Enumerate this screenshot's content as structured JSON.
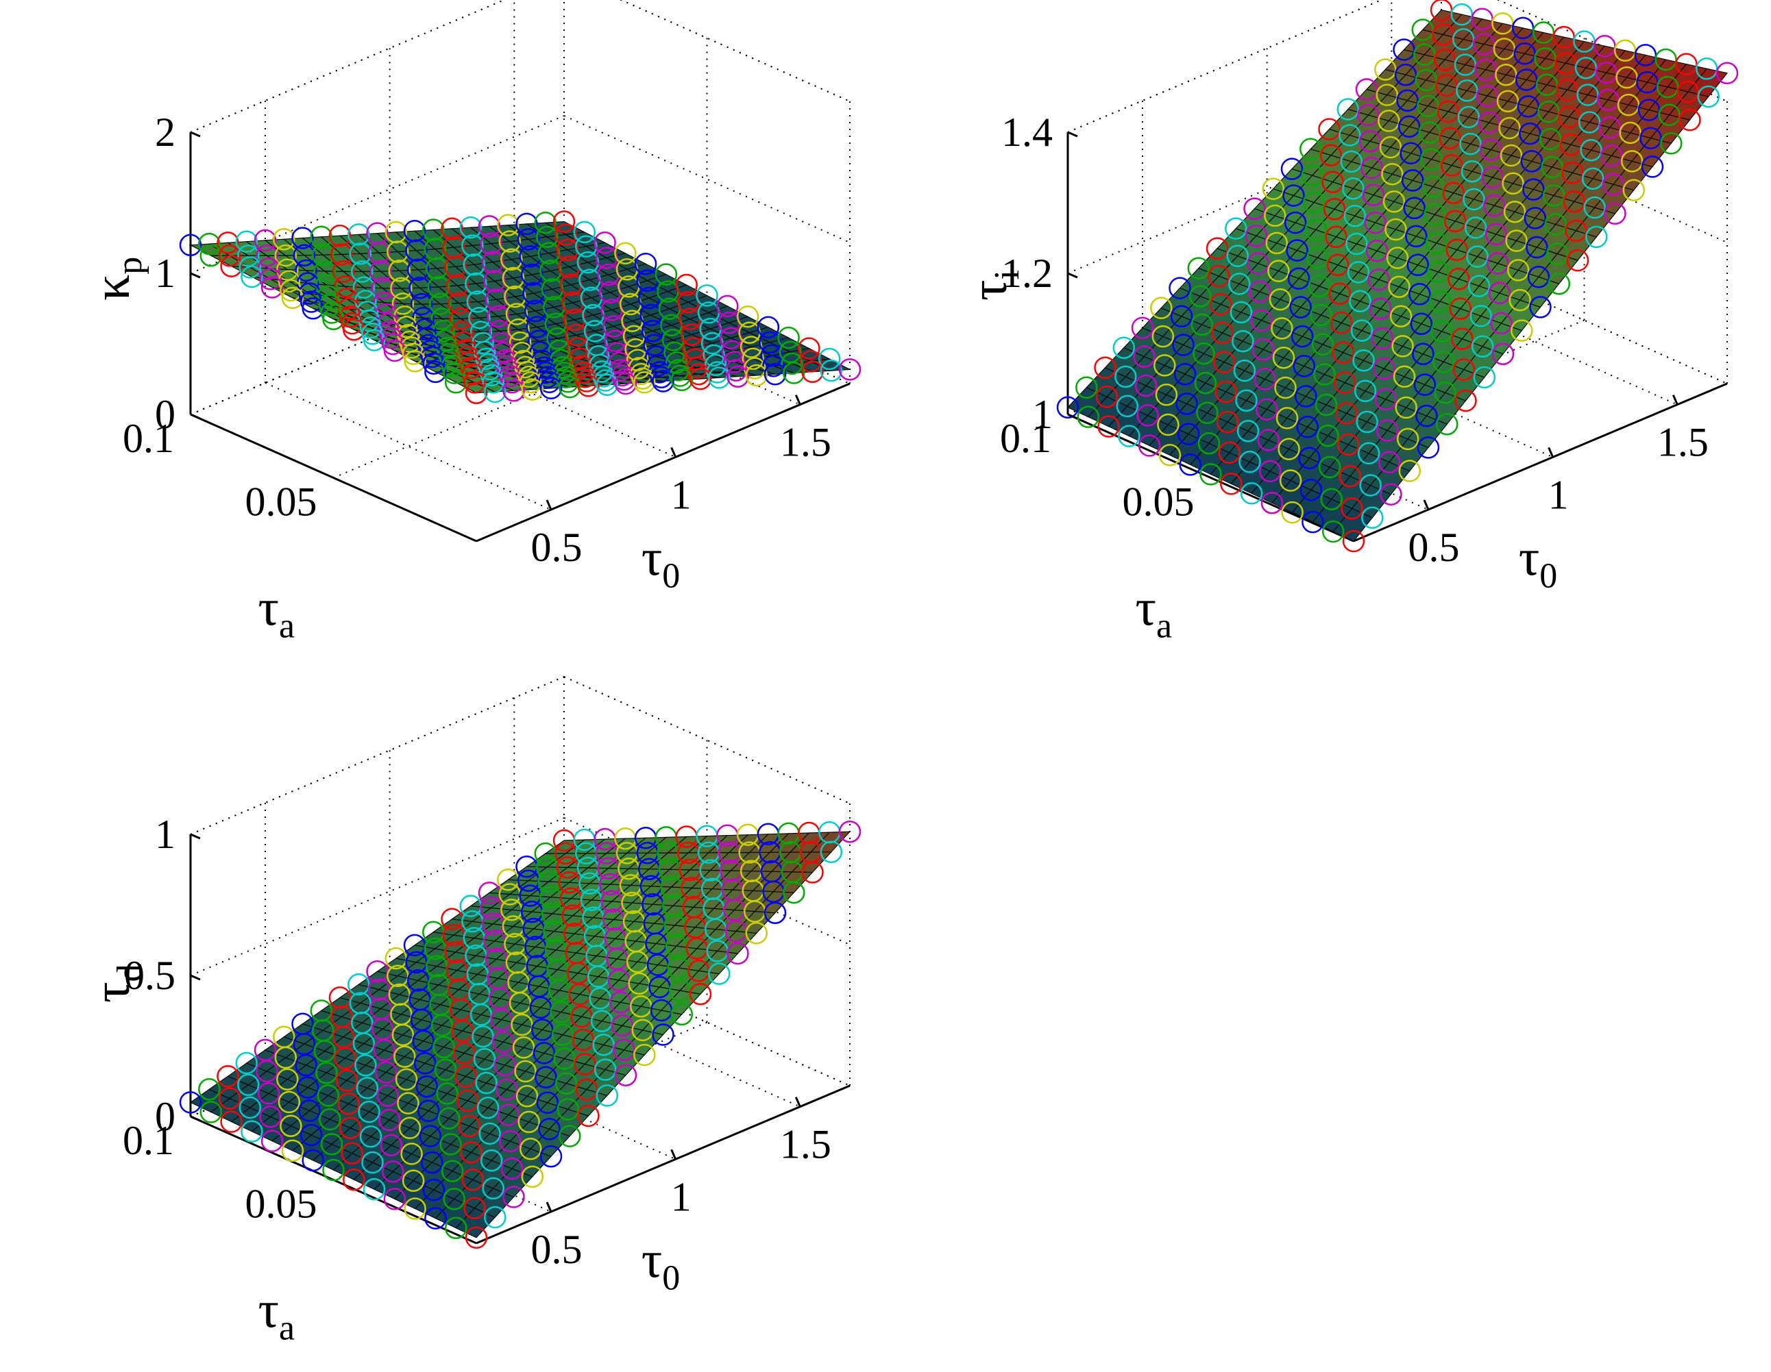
{
  "colors": {
    "background": "#ffffff",
    "marker_cycle": [
      "#0000ff",
      "#00aa00",
      "#ff0000",
      "#00cccc",
      "#cc00cc",
      "#cccc00"
    ],
    "surface_low": "#103a55",
    "surface_mid": "#3c8a3c",
    "surface_high": "#8c2a1c"
  },
  "chart_data": [
    {
      "type": "surface",
      "zlabel": {
        "symbol": "κ",
        "subscript": "p"
      },
      "xlabel": {
        "symbol": "τ",
        "subscript": "0"
      },
      "ylabel": {
        "symbol": "τ",
        "subscript": "a"
      },
      "x_ticks": [
        "0.5",
        "1",
        "1.5"
      ],
      "y_ticks": [
        "0.05",
        "0.1"
      ],
      "z_ticks": [
        "0",
        "1",
        "2"
      ],
      "xlim": [
        0.2,
        1.7
      ],
      "ylim": [
        0,
        0.1
      ],
      "zlim": [
        0,
        2
      ],
      "grid": true,
      "markers": "circle",
      "corner_values": {
        "x_min_y_max": 1.2,
        "x_max_y_max": 0.25,
        "x_min_y_min": 1.05,
        "x_max_y_min": 0.1
      }
    },
    {
      "type": "surface",
      "zlabel": {
        "symbol": "τ",
        "subscript": "i"
      },
      "xlabel": {
        "symbol": "τ",
        "subscript": "0"
      },
      "ylabel": {
        "symbol": "τ",
        "subscript": "a"
      },
      "x_ticks": [
        "0.5",
        "1",
        "1.5"
      ],
      "y_ticks": [
        "0.05",
        "0.1"
      ],
      "z_ticks": [
        "1",
        "1.2",
        "1.4"
      ],
      "xlim": [
        0.2,
        1.7
      ],
      "ylim": [
        0,
        0.1
      ],
      "zlim": [
        1,
        1.4
      ],
      "grid": true,
      "markers": "circle",
      "corner_values": {
        "x_min_y_max": 1.01,
        "x_max_y_max": 1.35,
        "x_min_y_min": 1.0,
        "x_max_y_min": 1.44
      }
    },
    {
      "type": "surface",
      "zlabel": {
        "symbol": "τ",
        "subscript": "d"
      },
      "xlabel": {
        "symbol": "τ",
        "subscript": "0"
      },
      "ylabel": {
        "symbol": "τ",
        "subscript": "a"
      },
      "x_ticks": [
        "0.5",
        "1",
        "1.5"
      ],
      "y_ticks": [
        "0.05",
        "0.1"
      ],
      "z_ticks": [
        "0",
        "0.5",
        "1"
      ],
      "xlim": [
        0.2,
        1.7
      ],
      "ylim": [
        0,
        0.1
      ],
      "zlim": [
        0,
        1
      ],
      "grid": true,
      "markers": "circle",
      "corner_values": {
        "x_min_y_max": 0.05,
        "x_max_y_max": 0.42,
        "x_min_y_min": 0.02,
        "x_max_y_min": 0.9
      }
    }
  ]
}
